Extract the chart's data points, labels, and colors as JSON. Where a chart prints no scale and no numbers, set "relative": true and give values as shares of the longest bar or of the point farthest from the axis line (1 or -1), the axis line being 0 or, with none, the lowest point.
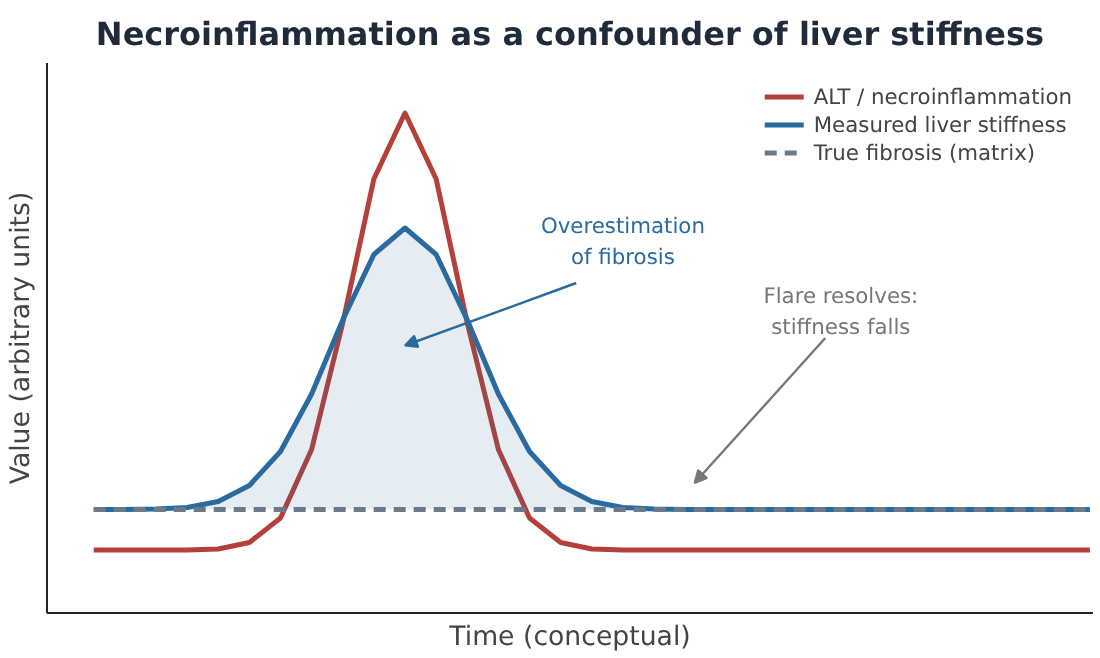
{
  "chart_data": {
    "type": "line",
    "relative": true,
    "title": "Necroinflammation as a confounder of liver stiffness",
    "xlabel": "Time (conceptual)",
    "ylabel": "Value (arbitrary units)",
    "categories": [
      null,
      null,
      null,
      null,
      null,
      null,
      null,
      null,
      null,
      null,
      null,
      null,
      null,
      null,
      null,
      null,
      null,
      null,
      null,
      null,
      null,
      null,
      null,
      null,
      null,
      null,
      null,
      null,
      null,
      null,
      null,
      null,
      null
    ],
    "series": [
      {
        "name": "ALT / necroinflammation",
        "color": "#b5403a",
        "line_style": "solid",
        "values": [
          0.126,
          0.126,
          0.126,
          0.126,
          0.128,
          0.141,
          0.19,
          0.327,
          0.58,
          0.868,
          1,
          0.868,
          0.58,
          0.327,
          0.19,
          0.141,
          0.128,
          0.126,
          0.126,
          0.126,
          0.126,
          0.126,
          0.126,
          0.126,
          0.126,
          0.126,
          0.126,
          0.126,
          0.126,
          0.126,
          0.126,
          0.126,
          0.126
        ]
      },
      {
        "name": "Measured liver stiffness",
        "color": "#2a6a9e",
        "line_style": "solid",
        "values": [
          0.207,
          0.207,
          0.208,
          0.211,
          0.223,
          0.255,
          0.323,
          0.438,
          0.586,
          0.717,
          0.77,
          0.717,
          0.586,
          0.438,
          0.323,
          0.255,
          0.223,
          0.211,
          0.208,
          0.207,
          0.207,
          0.207,
          0.207,
          0.207,
          0.207,
          0.207,
          0.207,
          0.207,
          0.207,
          0.207,
          0.207,
          0.207,
          0.207
        ],
        "lower": [
          0.207,
          0.207,
          0.207,
          0.207,
          0.207,
          0.207,
          0.207,
          0.207,
          0.207,
          0.207,
          0.207,
          0.207,
          0.207,
          0.207,
          0.207,
          0.207,
          0.207,
          0.207,
          0.207,
          0.207,
          0.207,
          0.207,
          0.207,
          0.207,
          0.207,
          0.207,
          0.207,
          0.207,
          0.207,
          0.207,
          0.207,
          0.207,
          0.207
        ],
        "upper": [
          0.207,
          0.207,
          0.208,
          0.211,
          0.223,
          0.255,
          0.323,
          0.438,
          0.586,
          0.717,
          0.77,
          0.717,
          0.586,
          0.438,
          0.323,
          0.255,
          0.223,
          0.211,
          0.208,
          0.207,
          0.207,
          0.207,
          0.207,
          0.207,
          0.207,
          0.207,
          0.207,
          0.207,
          0.207,
          0.207,
          0.207,
          0.207,
          0.207
        ]
      },
      {
        "name": "True fibrosis (matrix)",
        "color": "#6b7a8a",
        "line_style": "dashed",
        "values": [
          0.207,
          0.207,
          0.207,
          0.207,
          0.207,
          0.207,
          0.207,
          0.207,
          0.207,
          0.207,
          0.207,
          0.207,
          0.207,
          0.207,
          0.207,
          0.207,
          0.207,
          0.207,
          0.207,
          0.207,
          0.207,
          0.207,
          0.207,
          0.207,
          0.207,
          0.207,
          0.207,
          0.207,
          0.207,
          0.207,
          0.207,
          0.207,
          0.207
        ]
      }
    ],
    "annotations": [
      "Overestimation\nof fibrosis",
      "Flare resolves:\nstiffness falls"
    ],
    "legend": "top right"
  }
}
